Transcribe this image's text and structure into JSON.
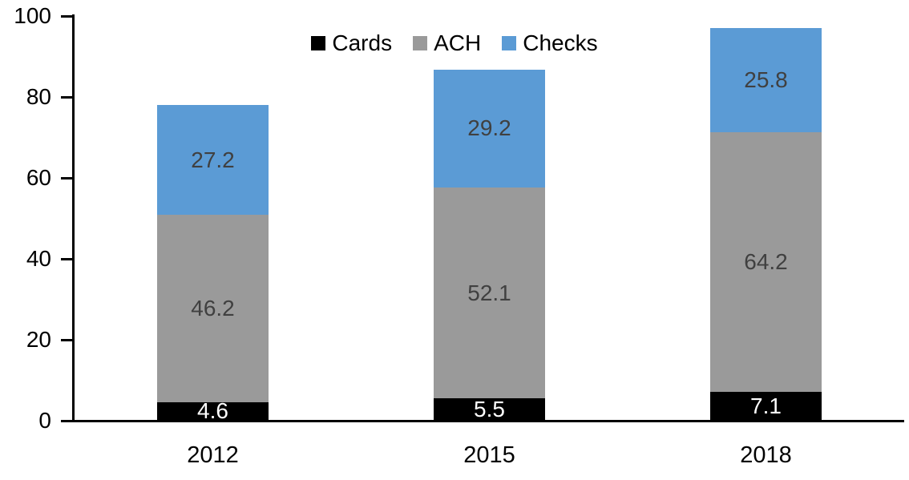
{
  "chart_data": {
    "type": "bar",
    "stacked": true,
    "title": "",
    "xlabel": "",
    "ylabel": "",
    "categories": [
      "2012",
      "2015",
      "2018"
    ],
    "series": [
      {
        "name": "Cards",
        "color": "#000000",
        "label_color": "#FFFFFF",
        "values": [
          4.6,
          5.5,
          7.1
        ]
      },
      {
        "name": "ACH",
        "color": "#9A9A9A",
        "label_color": "#404040",
        "values": [
          46.2,
          52.1,
          64.2
        ]
      },
      {
        "name": "Checks",
        "color": "#5B9BD5",
        "label_color": "#404040",
        "values": [
          27.2,
          29.2,
          25.8
        ]
      }
    ],
    "totals": [
      78.0,
      86.8,
      97.1
    ],
    "y_axis": {
      "min": 0,
      "max": 100,
      "tick_step": 20,
      "tick_labels": [
        "0",
        "20",
        "40",
        "60",
        "80",
        "100"
      ]
    },
    "legend": {
      "position": "top-center",
      "entries": [
        "Cards",
        "ACH",
        "Checks"
      ]
    },
    "grid": false,
    "data_labels": true,
    "data_label_decimals": 1,
    "colors": {
      "background": "#FFFFFF",
      "axis": "#000000",
      "label_dark": "#404040",
      "label_light": "#FFFFFF"
    }
  }
}
